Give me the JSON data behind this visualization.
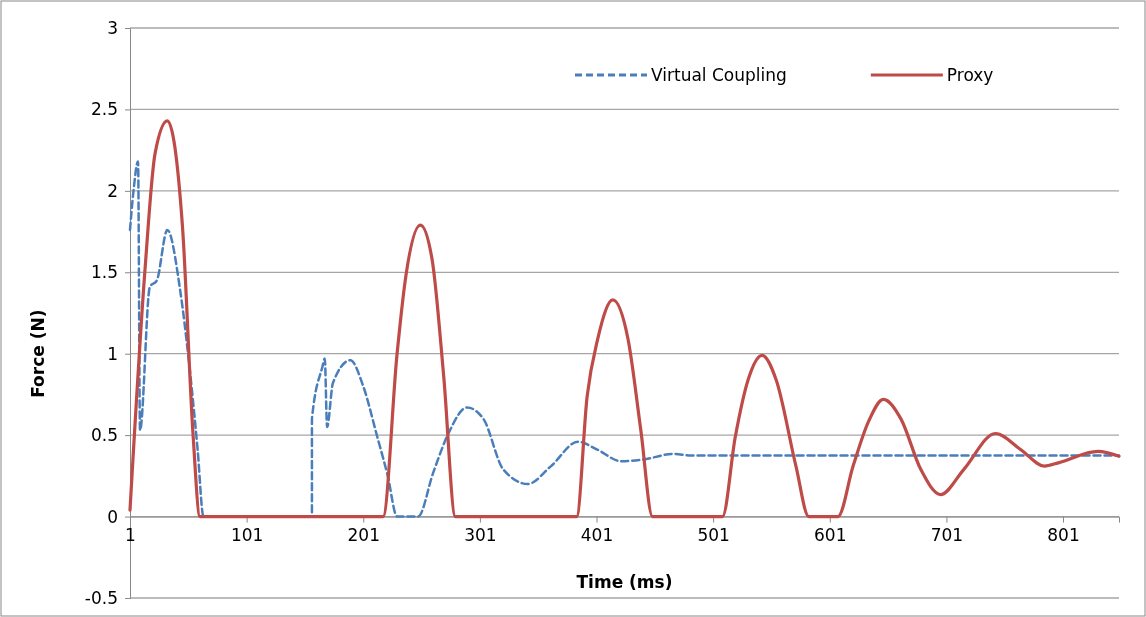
{
  "chart_data": {
    "type": "line",
    "xlabel": "Time (ms)",
    "ylabel": "Force (N)",
    "xlim": [
      1,
      849
    ],
    "xticks": [
      1,
      101,
      201,
      301,
      401,
      501,
      601,
      701,
      801
    ],
    "ylim": [
      -0.5,
      3
    ],
    "yticks": [
      -0.5,
      0,
      0.5,
      1,
      1.5,
      2,
      2.5,
      3
    ],
    "grid": "y",
    "legend": "top right",
    "series": [
      {
        "name": "Virtual Coupling",
        "color": "#4a7ebb",
        "line_style": "dashed",
        "x": [
          1,
          4,
          7.9,
          9.6,
          18,
          24,
          33,
          44,
          52,
          59,
          64,
          157,
          157,
          166,
          168,
          170,
          175,
          190,
          201,
          213,
          222,
          230,
          248,
          261,
          274,
          290,
          304,
          321,
          342,
          362,
          385,
          402,
          422,
          441,
          467,
          482,
          849
        ],
        "values": [
          1.76,
          2.0,
          2.18,
          0.53,
          1.41,
          1.45,
          1.76,
          1.39,
          0.92,
          0.41,
          0,
          0,
          0.6,
          0.92,
          0.97,
          0.55,
          0.82,
          0.96,
          0.8,
          0.49,
          0.25,
          0,
          0,
          0.27,
          0.51,
          0.67,
          0.6,
          0.29,
          0.2,
          0.31,
          0.46,
          0.41,
          0.34,
          0.35,
          0.385,
          0.375,
          0.375
        ]
      },
      {
        "name": "Proxy",
        "color": "#be4b48",
        "line_style": "solid",
        "x": [
          1,
          14,
          22.5,
          33,
          46,
          55,
          61,
          218,
          230,
          237,
          250,
          260,
          270,
          280,
          384,
          393,
          402,
          415,
          428,
          439,
          449,
          509,
          520,
          531,
          543,
          555,
          572,
          583,
          608,
          621,
          634,
          647,
          662,
          679,
          696,
          716,
          743,
          765,
          785,
          797,
          831,
          849
        ],
        "values": [
          0.04,
          1.53,
          2.23,
          2.43,
          1.78,
          0.51,
          0,
          0,
          1.0,
          1.45,
          1.79,
          1.58,
          0.86,
          0,
          0,
          0.74,
          1.09,
          1.33,
          1.09,
          0.53,
          0,
          0,
          0.49,
          0.84,
          0.99,
          0.84,
          0.31,
          0,
          0,
          0.31,
          0.58,
          0.72,
          0.6,
          0.29,
          0.135,
          0.29,
          0.51,
          0.41,
          0.31,
          0.33,
          0.4,
          0.37
        ]
      }
    ]
  }
}
